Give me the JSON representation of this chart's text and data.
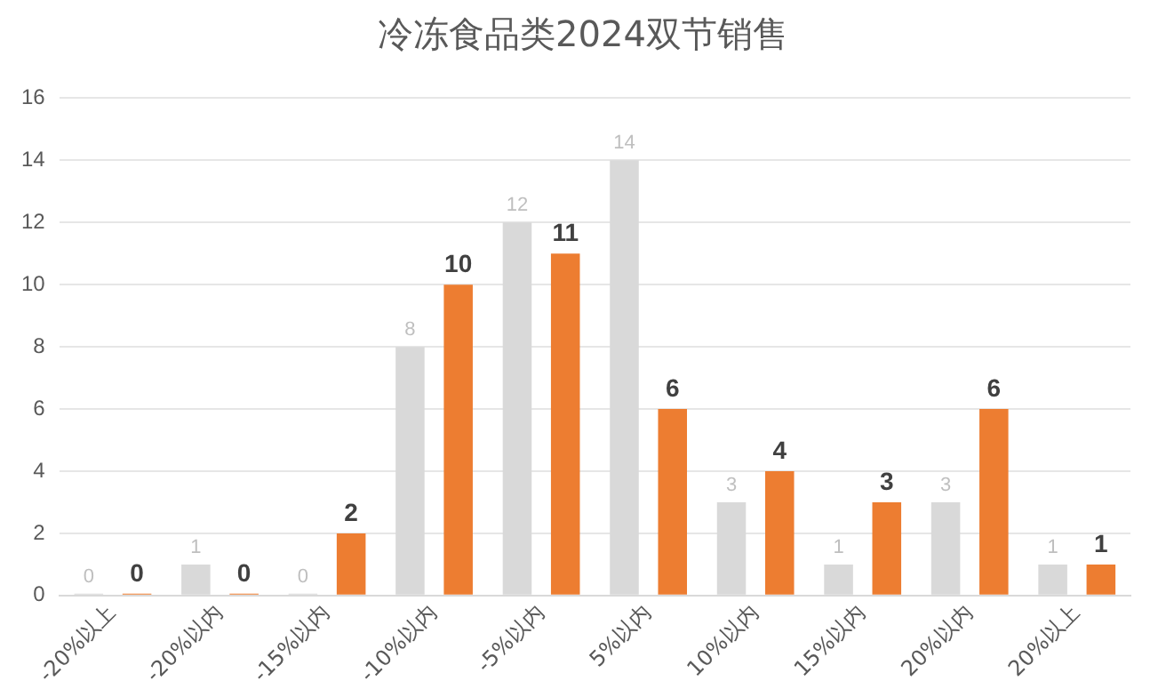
{
  "chart_data": {
    "type": "bar",
    "title": "冷冻食品类2024双节销售",
    "categories": [
      "-20%以上",
      "-20%以内",
      "-15%以内",
      "-10%以内",
      "-5%以内",
      "5%以内",
      "10%以内",
      "15%以内",
      "20%以内",
      "20%以上"
    ],
    "series": [
      {
        "color": "#d9d9d9",
        "values": [
          0,
          1,
          0,
          8,
          12,
          14,
          3,
          1,
          3,
          1
        ]
      },
      {
        "color": "#ed7d31",
        "values": [
          0,
          0,
          2,
          10,
          11,
          6,
          4,
          3,
          6,
          1
        ]
      }
    ],
    "ylim": [
      0,
      16
    ],
    "yticks": [
      0,
      2,
      4,
      6,
      8,
      10,
      12,
      14,
      16
    ],
    "grid": "y",
    "legend": false,
    "data_labels": true
  }
}
